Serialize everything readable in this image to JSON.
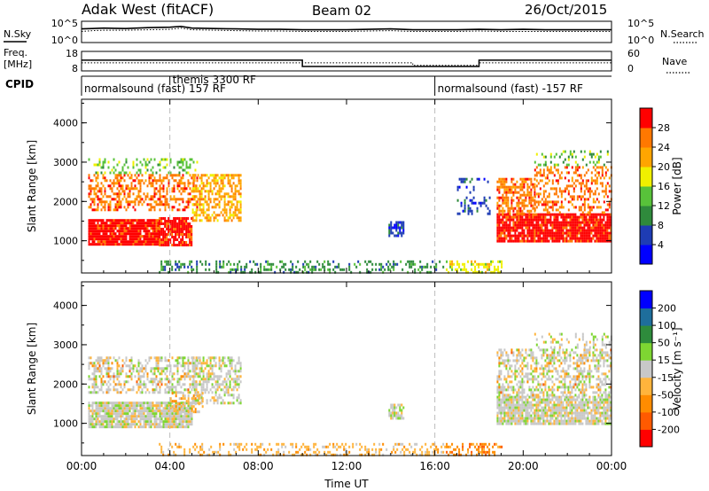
{
  "header": {
    "station": "Adak West (fitACF)",
    "beam": "Beam 02",
    "date": "26/Oct/2015"
  },
  "panel_labels": {
    "nsky": "N.Sky",
    "nsearch": "N.Search",
    "freq_line1": "Freq.",
    "freq_line2": "[MHz]",
    "nave": "Nave",
    "cpid": "CPID"
  },
  "chart_data": [
    {
      "type": "line",
      "panel": "noise",
      "left_ticks": [
        "10^5",
        "10^0"
      ],
      "right_ticks": [
        "10^5",
        "10^0"
      ],
      "series": [
        {
          "name": "N.Sky",
          "style": "solid"
        },
        {
          "name": "N.Search",
          "style": "dotted"
        }
      ],
      "x": [
        0,
        0.5,
        1,
        2,
        3,
        4,
        4.5,
        5,
        6,
        7,
        8,
        9,
        10,
        11,
        12,
        13,
        14,
        15,
        16,
        17,
        18,
        19,
        20,
        21,
        22,
        23,
        24
      ],
      "nsky_log": [
        3.2,
        3.3,
        3.4,
        3.3,
        3.5,
        3.6,
        3.8,
        3.4,
        3.3,
        3.2,
        3.1,
        3.1,
        3.0,
        3.0,
        3.0,
        3.1,
        3.2,
        3.0,
        3.0,
        3.0,
        3.1,
        3.0,
        3.1,
        3.0,
        3.0,
        3.0,
        3.0
      ],
      "nsearch_log": [
        2.6,
        2.8,
        2.9,
        2.9,
        3.0,
        3.1,
        3.4,
        3.0,
        2.9,
        2.8,
        2.7,
        2.7,
        2.6,
        2.6,
        2.6,
        2.7,
        2.8,
        2.6,
        2.6,
        2.6,
        2.7,
        2.6,
        2.6,
        2.6,
        2.6,
        2.6,
        2.6
      ],
      "ylim": [
        0,
        5
      ]
    },
    {
      "type": "line",
      "panel": "frequency",
      "left_ticks": [
        "18",
        "8"
      ],
      "right_ticks": [
        "60",
        "0"
      ],
      "freq_mhz": [
        {
          "t0": 0,
          "t1": 10,
          "v": 13.5
        },
        {
          "t0": 10,
          "t1": 18,
          "v": 10.3
        },
        {
          "t0": 18,
          "t1": 24,
          "v": 13.5
        }
      ],
      "nave": [
        {
          "t0": 0,
          "t1": 15,
          "v": 25
        },
        {
          "t0": 15,
          "t1": 18,
          "v": 17
        },
        {
          "t0": 18,
          "t1": 24,
          "v": 25
        }
      ],
      "ylim": [
        8,
        18
      ],
      "nave_lim": [
        0,
        60
      ]
    },
    {
      "type": "table",
      "panel": "cpid",
      "entries": [
        {
          "t": 0,
          "label": "normalsound (fast) 157 RF"
        },
        {
          "t": 4,
          "label": "themis 3300 RF"
        },
        {
          "t": 16,
          "label": "normalsound (fast) -157 RF"
        }
      ]
    },
    {
      "type": "heatmap",
      "panel": "power",
      "ylabel": "Slant Range [km]",
      "yticks": [
        1000,
        2000,
        3000,
        4000
      ],
      "ylim": [
        180,
        4600
      ],
      "xlim": [
        0,
        24
      ],
      "colorbar": {
        "label": "Power [dB]",
        "ticks": [
          "4",
          "8",
          "12",
          "16",
          "20",
          "24",
          "28"
        ],
        "colors": [
          "#0000ff",
          "#1e3cb4",
          "#2f8a3c",
          "#58c23a",
          "#f0f000",
          "#ffa500",
          "#ff7800",
          "#ff0000"
        ]
      },
      "regions": [
        {
          "t0": 0.3,
          "t1": 3.5,
          "r0": 900,
          "r1": 1550,
          "level": 7,
          "density": 0.95
        },
        {
          "t0": 3.5,
          "t1": 5.0,
          "r0": 900,
          "r1": 1600,
          "level": 7,
          "density": 0.85
        },
        {
          "t0": 0.3,
          "t1": 5.2,
          "r0": 1800,
          "r1": 2700,
          "level": 6,
          "density": 0.45
        },
        {
          "t0": 0.3,
          "t1": 5.2,
          "r0": 2700,
          "r1": 3100,
          "level": 3,
          "density": 0.3
        },
        {
          "t0": 5.0,
          "t1": 7.2,
          "r0": 1500,
          "r1": 2700,
          "level": 5,
          "density": 0.55
        },
        {
          "t0": 13.9,
          "t1": 14.6,
          "r0": 1150,
          "r1": 1500,
          "level": 1,
          "density": 0.7
        },
        {
          "t0": 3.5,
          "t1": 16.5,
          "r0": 200,
          "r1": 500,
          "level": 2,
          "density": 0.3
        },
        {
          "t0": 16.5,
          "t1": 19.0,
          "r0": 200,
          "r1": 500,
          "level": 4,
          "density": 0.45
        },
        {
          "t0": 18.8,
          "t1": 24.0,
          "r0": 1000,
          "r1": 1700,
          "level": 7,
          "density": 0.9
        },
        {
          "t0": 18.8,
          "t1": 20.5,
          "r0": 1700,
          "r1": 2600,
          "level": 6,
          "density": 0.6
        },
        {
          "t0": 20.5,
          "t1": 24.0,
          "r0": 1700,
          "r1": 2900,
          "level": 6,
          "density": 0.4
        },
        {
          "t0": 20.5,
          "t1": 24.0,
          "r0": 2900,
          "r1": 3300,
          "level": 3,
          "density": 0.25
        },
        {
          "t0": 17.0,
          "t1": 18.5,
          "r0": 1700,
          "r1": 2600,
          "level": 1,
          "density": 0.2
        }
      ]
    },
    {
      "type": "heatmap",
      "panel": "velocity",
      "ylabel": "Slant Range [km]",
      "yticks": [
        1000,
        2000,
        3000,
        4000
      ],
      "ylim": [
        180,
        4600
      ],
      "xlim": [
        0,
        24
      ],
      "xticks": [
        "00:00",
        "04:00",
        "08:00",
        "12:00",
        "16:00",
        "20:00",
        "00:00"
      ],
      "xlabel": "Time UT",
      "colorbar": {
        "label": "Velocity [m s⁻¹]",
        "ticks": [
          "-200",
          "-100",
          "-50",
          "-15",
          "15",
          "50",
          "100",
          "200"
        ],
        "colors": [
          "#ff0000",
          "#ff5a00",
          "#ff8c00",
          "#ffb43c",
          "#c8c8c8",
          "#7ed632",
          "#2e8b3c",
          "#1e6e9c",
          "#0000ff"
        ]
      },
      "regions": [
        {
          "t0": 0.3,
          "t1": 5.0,
          "r0": 900,
          "r1": 1550,
          "level": 4,
          "density": 0.9
        },
        {
          "t0": 0.3,
          "t1": 5.2,
          "r0": 1800,
          "r1": 2700,
          "level": 4,
          "density": 0.45
        },
        {
          "t0": 0.3,
          "t1": 5.2,
          "r0": 1800,
          "r1": 2700,
          "level": 2,
          "density": 0.05
        },
        {
          "t0": 5.0,
          "t1": 7.2,
          "r0": 1500,
          "r1": 2700,
          "level": 4,
          "density": 0.55
        },
        {
          "t0": 4.0,
          "t1": 5.5,
          "r0": 1300,
          "r1": 1800,
          "level": 3,
          "density": 0.4
        },
        {
          "t0": 13.9,
          "t1": 14.6,
          "r0": 1150,
          "r1": 1500,
          "level": 4,
          "density": 0.7
        },
        {
          "t0": 3.5,
          "t1": 16.5,
          "r0": 200,
          "r1": 500,
          "level": 3,
          "density": 0.3
        },
        {
          "t0": 16.5,
          "t1": 19.0,
          "r0": 200,
          "r1": 500,
          "level": 2,
          "density": 0.4
        },
        {
          "t0": 18.8,
          "t1": 24.0,
          "r0": 1000,
          "r1": 1700,
          "level": 4,
          "density": 0.85
        },
        {
          "t0": 18.8,
          "t1": 24.0,
          "r0": 1700,
          "r1": 2900,
          "level": 4,
          "density": 0.45
        },
        {
          "t0": 18.8,
          "t1": 24.0,
          "r0": 1700,
          "r1": 2900,
          "level": 2,
          "density": 0.05
        },
        {
          "t0": 20.5,
          "t1": 24.0,
          "r0": 2900,
          "r1": 3300,
          "level": 4,
          "density": 0.2
        }
      ]
    }
  ]
}
